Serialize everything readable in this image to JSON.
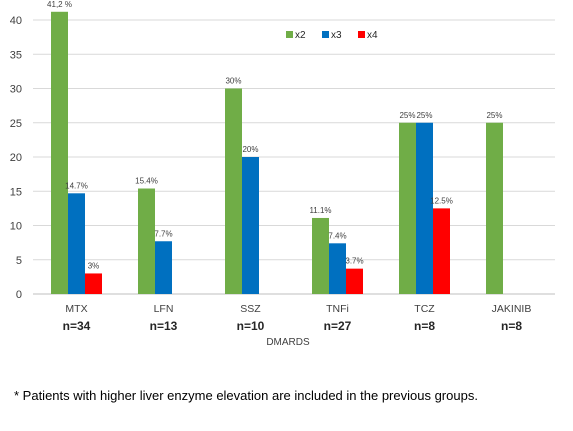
{
  "chart_data": {
    "type": "bar",
    "categories": [
      "MTX",
      "LFN",
      "SSZ",
      "TNFi",
      "TCZ",
      "JAKINIB"
    ],
    "sample_sizes": [
      "n=34",
      "n=13",
      "n=10",
      "n=27",
      "n=8",
      "n=8"
    ],
    "series": [
      {
        "name": "x2",
        "color": "#70ad47",
        "values": [
          41.2,
          15.4,
          30,
          11.1,
          25,
          25
        ],
        "labels": [
          "41,2 %",
          "15.4%",
          "30%",
          "11.1%",
          "25%",
          "25%"
        ]
      },
      {
        "name": "x3",
        "color": "#0070c0",
        "values": [
          14.7,
          7.7,
          20,
          7.4,
          25,
          null
        ],
        "labels": [
          "14.7%",
          "7.7%",
          "20%",
          "7.4%",
          "25%",
          ""
        ]
      },
      {
        "name": "x4",
        "color": "#ff0000",
        "values": [
          3,
          null,
          null,
          3.7,
          12.5,
          null
        ],
        "labels": [
          "3%",
          "",
          "",
          "3.7%",
          "12.5%",
          ""
        ]
      }
    ],
    "xlabel": "DMARDS",
    "ylabel": "",
    "ylim": [
      0,
      40
    ],
    "yticks": [
      0,
      5,
      10,
      15,
      20,
      25,
      30,
      35,
      40
    ],
    "grid": true,
    "legend_position": "top-right"
  },
  "footnote": "* Patients with higher liver enzyme elevation are included in the previous groups."
}
